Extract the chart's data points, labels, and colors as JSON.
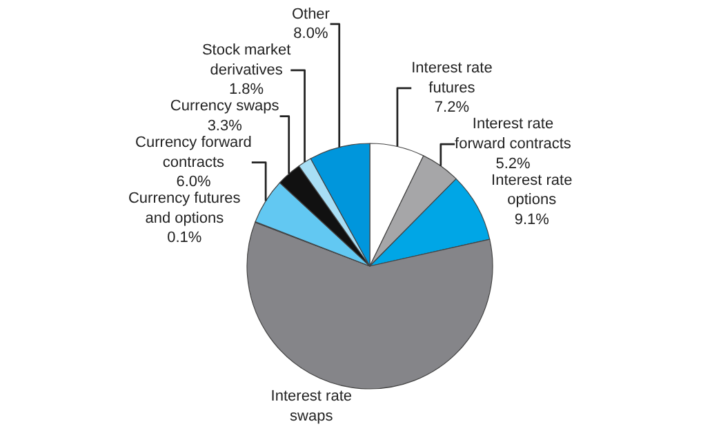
{
  "chart_data": {
    "type": "pie",
    "categories": [
      "Interest rate futures",
      "Interest rate forward contracts",
      "Interest rate options",
      "Interest rate swaps",
      "Currency futures and options",
      "Currency forward contracts",
      "Currency swaps",
      "Stock market derivatives",
      "Other"
    ],
    "values": [
      7.2,
      5.2,
      9.1,
      59.3,
      0.1,
      6.0,
      3.3,
      1.8,
      8.0
    ],
    "value_labels": [
      "7.2%",
      "5.2%",
      "9.1%",
      null,
      "0.1%",
      "6.0%",
      "3.3%",
      "1.8%",
      "8.0%"
    ],
    "colors": [
      "#ffffff",
      "#a6a6a8",
      "#00a6e6",
      "#858589",
      "#3a3a3c",
      "#62c8f2",
      "#111111",
      "#a8def5",
      "#0096dc"
    ],
    "legend": false
  }
}
